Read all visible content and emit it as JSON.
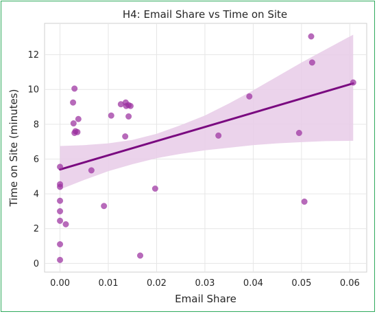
{
  "chart_data": {
    "type": "scatter",
    "title": "H4: Email Share vs Time on Site",
    "xlabel": "Email Share",
    "ylabel": "Time on Site (minutes)",
    "xlim": [
      -0.0032,
      0.0635
    ],
    "ylim": [
      -0.5,
      13.8
    ],
    "xticks": [
      0.0,
      0.01,
      0.02,
      0.03,
      0.04,
      0.05,
      0.06
    ],
    "xtick_labels": [
      "0.00",
      "0.01",
      "0.02",
      "0.03",
      "0.04",
      "0.05",
      "0.06"
    ],
    "yticks": [
      0,
      2,
      4,
      6,
      8,
      10,
      12
    ],
    "ytick_labels": [
      "0",
      "2",
      "4",
      "6",
      "8",
      "10",
      "12"
    ],
    "grid": true,
    "point_color": "#9b30a0",
    "line_color": "#7a0a80",
    "band_color": "#e7cbe8",
    "points": [
      {
        "x": 0.0,
        "y": 5.55
      },
      {
        "x": 0.0,
        "y": 4.55
      },
      {
        "x": 0.0,
        "y": 4.4
      },
      {
        "x": 0.0,
        "y": 3.6
      },
      {
        "x": 0.0,
        "y": 3.0
      },
      {
        "x": 0.0,
        "y": 2.45
      },
      {
        "x": 0.0,
        "y": 1.1
      },
      {
        "x": 0.0,
        "y": 0.2
      },
      {
        "x": 0.0012,
        "y": 2.25
      },
      {
        "x": 0.0027,
        "y": 9.25
      },
      {
        "x": 0.0028,
        "y": 8.05
      },
      {
        "x": 0.003,
        "y": 10.05
      },
      {
        "x": 0.003,
        "y": 7.5
      },
      {
        "x": 0.0032,
        "y": 7.6
      },
      {
        "x": 0.0036,
        "y": 7.55
      },
      {
        "x": 0.0038,
        "y": 8.3
      },
      {
        "x": 0.0065,
        "y": 5.35
      },
      {
        "x": 0.0091,
        "y": 3.3
      },
      {
        "x": 0.0106,
        "y": 8.5
      },
      {
        "x": 0.0126,
        "y": 9.15
      },
      {
        "x": 0.0135,
        "y": 7.3
      },
      {
        "x": 0.0136,
        "y": 9.25
      },
      {
        "x": 0.0137,
        "y": 9.05
      },
      {
        "x": 0.0142,
        "y": 8.45
      },
      {
        "x": 0.0142,
        "y": 9.1
      },
      {
        "x": 0.0146,
        "y": 9.05
      },
      {
        "x": 0.0166,
        "y": 0.45
      },
      {
        "x": 0.0197,
        "y": 4.3
      },
      {
        "x": 0.0328,
        "y": 7.35
      },
      {
        "x": 0.0392,
        "y": 9.6
      },
      {
        "x": 0.0495,
        "y": 7.5
      },
      {
        "x": 0.0506,
        "y": 3.55
      },
      {
        "x": 0.052,
        "y": 13.05
      },
      {
        "x": 0.0522,
        "y": 11.55
      },
      {
        "x": 0.0607,
        "y": 10.4
      }
    ],
    "regression": {
      "x": [
        0.0,
        0.0607
      ],
      "y": [
        5.4,
        10.35
      ]
    },
    "confidence_band": {
      "x": [
        0.0,
        0.005,
        0.01,
        0.015,
        0.02,
        0.025,
        0.03,
        0.035,
        0.04,
        0.045,
        0.05,
        0.055,
        0.0607
      ],
      "lower": [
        4.25,
        4.8,
        5.3,
        5.7,
        6.05,
        6.3,
        6.5,
        6.65,
        6.8,
        6.9,
        6.97,
        7.03,
        7.05
      ],
      "upper": [
        6.75,
        6.8,
        6.9,
        7.1,
        7.45,
        7.95,
        8.5,
        9.2,
        9.95,
        10.75,
        11.55,
        12.3,
        13.15
      ]
    }
  }
}
